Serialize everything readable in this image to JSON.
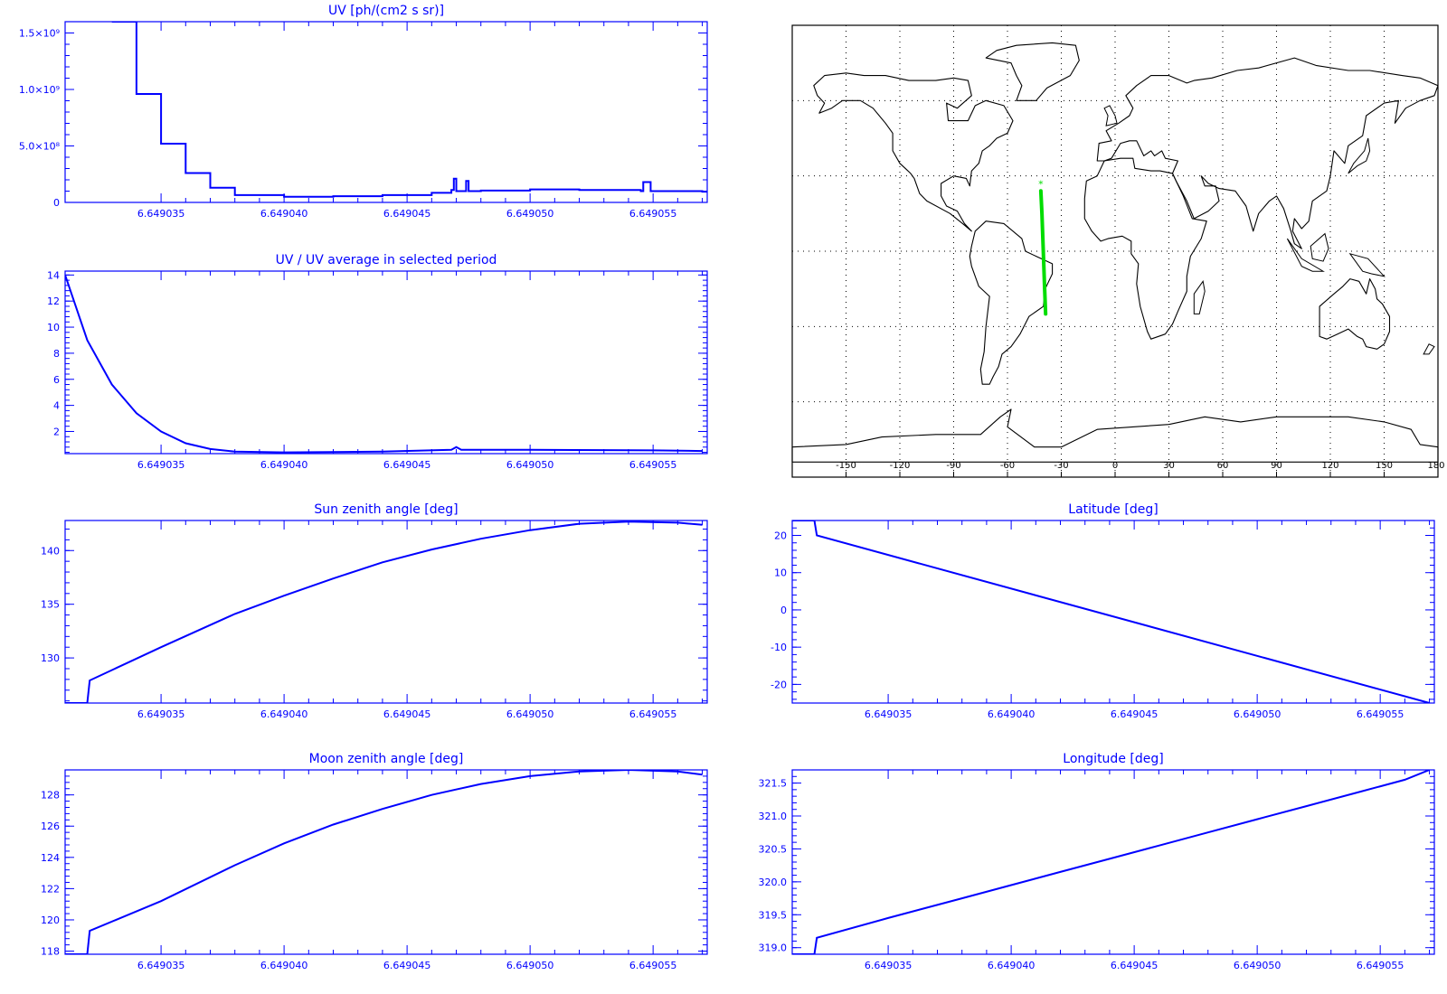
{
  "colors": {
    "plot": "#0000ff",
    "track": "#00dd00",
    "coast": "#000000",
    "background": "#ffffff"
  },
  "chart_data": [
    {
      "id": "uv",
      "type": "line",
      "title": "UV [ph/(cm2 s sr)]",
      "xlim": [
        6.6490311,
        6.6490572
      ],
      "ylim": [
        0,
        1600000000.0
      ],
      "x_ticks": [
        "6.649035",
        "6.649040",
        "6.649045",
        "6.649050",
        "6.649055"
      ],
      "y_ticks": [
        "0",
        "5.0×10⁸",
        "1.0×10⁹",
        "1.5×10⁹"
      ],
      "y_tick_values": [
        0,
        500000000,
        1000000000,
        1500000000
      ],
      "grid": false,
      "series": [
        {
          "x": [
            6.649033,
            6.649034,
            6.649035,
            6.649036,
            6.649037,
            6.649038,
            6.64904,
            6.649042,
            6.649044,
            6.649046,
            6.6490468,
            6.6490469,
            6.649047,
            6.6490473,
            6.6490474,
            6.6490475,
            6.649048,
            6.64905,
            6.649052,
            6.6490545,
            6.6490546,
            6.6490548,
            6.6490549,
            6.649057
          ],
          "y": [
            1600000000.0,
            960000000.0,
            520000000.0,
            260000000.0,
            130000000.0,
            65000000.0,
            50000000.0,
            55000000.0,
            65000000.0,
            85000000.0,
            110000000.0,
            210000000.0,
            100000000.0,
            100000000.0,
            190000000.0,
            100000000.0,
            105000000.0,
            115000000.0,
            110000000.0,
            100000000.0,
            180000000.0,
            180000000.0,
            100000000.0,
            95000000.0
          ]
        }
      ]
    },
    {
      "id": "uv-ratio",
      "type": "line",
      "title": "UV / UV average in selected period",
      "xlim": [
        6.6490311,
        6.6490572
      ],
      "ylim": [
        0.3,
        14.3
      ],
      "x_ticks": [
        "6.649035",
        "6.649040",
        "6.649045",
        "6.649050",
        "6.649055"
      ],
      "y_ticks": [
        "2",
        "4",
        "6",
        "8",
        "10",
        "12",
        "14"
      ],
      "y_tick_values": [
        2,
        4,
        6,
        8,
        10,
        12,
        14
      ],
      "grid": false,
      "series": [
        {
          "x": [
            6.6490311,
            6.649032,
            6.649033,
            6.649034,
            6.649035,
            6.649036,
            6.649037,
            6.649038,
            6.64904,
            6.649044,
            6.6490468,
            6.649047,
            6.6490472,
            6.64905,
            6.649055,
            6.649057
          ],
          "y": [
            14.0,
            9.0,
            5.6,
            3.4,
            2.0,
            1.1,
            0.65,
            0.45,
            0.4,
            0.45,
            0.6,
            0.8,
            0.6,
            0.6,
            0.55,
            0.5
          ]
        }
      ]
    },
    {
      "id": "sun-zenith",
      "type": "line",
      "title": "Sun zenith angle [deg]",
      "xlim": [
        6.6490311,
        6.6490572
      ],
      "ylim": [
        125.8,
        142.8
      ],
      "x_ticks": [
        "6.649035",
        "6.649040",
        "6.649045",
        "6.649050",
        "6.649055"
      ],
      "y_ticks": [
        "130",
        "135",
        "140"
      ],
      "y_tick_values": [
        130,
        135,
        140
      ],
      "grid": false,
      "series": [
        {
          "x": [
            6.6490311,
            6.649032,
            6.6490321,
            6.649035,
            6.649038,
            6.64904,
            6.649042,
            6.649044,
            6.649046,
            6.649048,
            6.64905,
            6.649052,
            6.649054,
            6.649056,
            6.649057
          ],
          "y": [
            125.8,
            125.8,
            127.9,
            131.0,
            134.1,
            135.8,
            137.4,
            138.9,
            140.1,
            141.1,
            141.9,
            142.5,
            142.7,
            142.6,
            142.4
          ]
        }
      ]
    },
    {
      "id": "latitude",
      "type": "line",
      "title": "Latitude [deg]",
      "xlim": [
        6.6490311,
        6.6490572
      ],
      "ylim": [
        -25,
        24
      ],
      "x_ticks": [
        "6.649035",
        "6.649040",
        "6.649045",
        "6.649050",
        "6.649055"
      ],
      "y_ticks": [
        "-20",
        "-10",
        "0",
        "10",
        "20"
      ],
      "y_tick_values": [
        -20,
        -10,
        0,
        10,
        20
      ],
      "grid": false,
      "series": [
        {
          "x": [
            6.6490311,
            6.649032,
            6.6490321,
            6.649057
          ],
          "y": [
            24,
            24,
            20,
            -25
          ]
        }
      ]
    },
    {
      "id": "moon-zenith",
      "type": "line",
      "title": "Moon zenith angle [deg]",
      "xlim": [
        6.6490311,
        6.6490572
      ],
      "ylim": [
        117.8,
        129.6
      ],
      "x_ticks": [
        "6.649035",
        "6.649040",
        "6.649045",
        "6.649050",
        "6.649055"
      ],
      "y_ticks": [
        "118",
        "120",
        "122",
        "124",
        "126",
        "128"
      ],
      "y_tick_values": [
        118,
        120,
        122,
        124,
        126,
        128
      ],
      "grid": false,
      "series": [
        {
          "x": [
            6.6490311,
            6.649032,
            6.6490321,
            6.649035,
            6.649038,
            6.64904,
            6.649042,
            6.649044,
            6.649046,
            6.649048,
            6.64905,
            6.649052,
            6.649054,
            6.649056,
            6.649057
          ],
          "y": [
            117.8,
            117.8,
            119.3,
            121.2,
            123.5,
            124.9,
            126.1,
            127.1,
            128.0,
            128.7,
            129.2,
            129.5,
            129.6,
            129.5,
            129.3
          ]
        }
      ]
    },
    {
      "id": "longitude",
      "type": "line",
      "title": "Longitude [deg]",
      "xlim": [
        6.6490311,
        6.6490572
      ],
      "ylim": [
        318.9,
        321.7
      ],
      "x_ticks": [
        "6.649035",
        "6.649040",
        "6.649045",
        "6.649050",
        "6.649055"
      ],
      "y_ticks": [
        "319.0",
        "319.5",
        "320.0",
        "320.5",
        "321.0",
        "321.5"
      ],
      "y_tick_values": [
        319.0,
        319.5,
        320.0,
        320.5,
        321.0,
        321.5
      ],
      "grid": false,
      "series": [
        {
          "x": [
            6.6490311,
            6.649032,
            6.6490321,
            6.649035,
            6.649038,
            6.64904,
            6.649042,
            6.649044,
            6.649046,
            6.649048,
            6.64905,
            6.649052,
            6.649054,
            6.649056,
            6.649057
          ],
          "y": [
            318.9,
            318.9,
            319.15,
            319.45,
            319.75,
            319.95,
            320.15,
            320.35,
            320.55,
            320.75,
            320.95,
            321.15,
            321.35,
            321.55,
            321.7
          ]
        }
      ]
    },
    {
      "id": "world-map",
      "type": "map",
      "projection": "equirectangular",
      "xlim": [
        -180,
        180
      ],
      "ylim": [
        -90,
        90
      ],
      "x_ticks": [
        "-150",
        "-120",
        "-90",
        "-60",
        "-30",
        "0",
        "30",
        "60",
        "90",
        "120",
        "150",
        "180"
      ],
      "x_tick_values": [
        -150,
        -120,
        -90,
        -60,
        -30,
        0,
        30,
        60,
        90,
        120,
        150,
        180
      ],
      "grid": true,
      "track": {
        "lon": [
          -41.4,
          -40.8,
          -40.3,
          -39.8,
          -39.3,
          -38.7
        ],
        "lat": [
          24,
          15,
          5,
          -5,
          -15,
          -25
        ]
      },
      "track_start_marker": "*"
    }
  ]
}
